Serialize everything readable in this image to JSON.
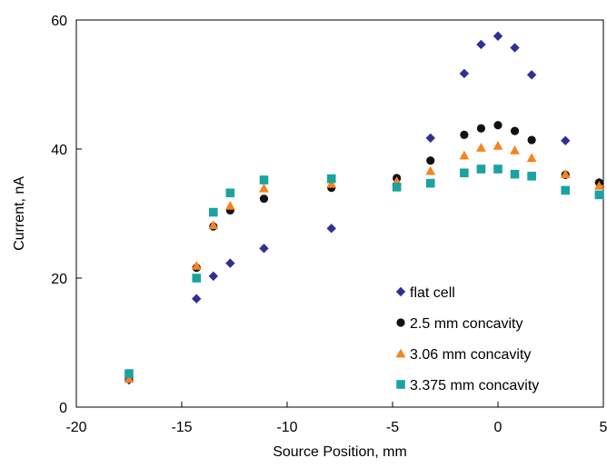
{
  "chart_data": {
    "type": "scatter",
    "xlabel": "Source Position, mm",
    "ylabel": "Current, nA",
    "xlim": [
      -20,
      5
    ],
    "ylim": [
      0,
      60
    ],
    "x_ticks": [
      -20,
      -15,
      -10,
      -5,
      0,
      5
    ],
    "y_ticks": [
      0,
      20,
      40,
      60
    ],
    "grid": false,
    "legend_position": "bottom-right",
    "series": [
      {
        "name": "flat cell",
        "marker": "diamond",
        "color": "#2E3192",
        "points": [
          [
            -17.5,
            4.2
          ],
          [
            -14.3,
            16.8
          ],
          [
            -13.5,
            20.3
          ],
          [
            -12.7,
            22.3
          ],
          [
            -11.1,
            24.6
          ],
          [
            -7.9,
            27.7
          ],
          [
            -4.8,
            34.5
          ],
          [
            -3.2,
            41.7
          ],
          [
            -1.6,
            51.7
          ],
          [
            -0.8,
            56.2
          ],
          [
            0,
            57.5
          ],
          [
            0.8,
            55.7
          ],
          [
            1.6,
            51.5
          ],
          [
            3.2,
            41.3
          ],
          [
            4.8,
            34.8
          ]
        ]
      },
      {
        "name": "2.5 mm concavity",
        "marker": "circle",
        "color": "#111111",
        "points": [
          [
            -17.5,
            4.6
          ],
          [
            -14.3,
            21.6
          ],
          [
            -13.5,
            28.0
          ],
          [
            -12.7,
            30.5
          ],
          [
            -11.1,
            32.3
          ],
          [
            -7.9,
            34.0
          ],
          [
            -4.8,
            35.5
          ],
          [
            -3.2,
            38.2
          ],
          [
            -1.6,
            42.2
          ],
          [
            -0.8,
            43.2
          ],
          [
            0,
            43.7
          ],
          [
            0.8,
            42.8
          ],
          [
            1.6,
            41.4
          ],
          [
            3.2,
            36.0
          ],
          [
            4.8,
            34.8
          ]
        ]
      },
      {
        "name": "3.06 mm concavity",
        "marker": "triangle",
        "color": "#F7821E",
        "points": [
          [
            -17.5,
            4.4
          ],
          [
            -14.3,
            21.9
          ],
          [
            -13.5,
            28.2
          ],
          [
            -12.7,
            31.2
          ],
          [
            -11.1,
            33.9
          ],
          [
            -7.9,
            34.6
          ],
          [
            -4.8,
            35.0
          ],
          [
            -3.2,
            36.6
          ],
          [
            -1.6,
            39.0
          ],
          [
            -0.8,
            40.2
          ],
          [
            0,
            40.5
          ],
          [
            0.8,
            39.8
          ],
          [
            1.6,
            38.6
          ],
          [
            3.2,
            36.1
          ],
          [
            4.8,
            34.3
          ]
        ]
      },
      {
        "name": "3.375 mm concavity",
        "marker": "square",
        "color": "#1AA3A0",
        "points": [
          [
            -17.5,
            5.2
          ],
          [
            -14.3,
            20.0
          ],
          [
            -13.5,
            30.2
          ],
          [
            -12.7,
            33.2
          ],
          [
            -11.1,
            35.2
          ],
          [
            -7.9,
            35.4
          ],
          [
            -4.8,
            34.1
          ],
          [
            -3.2,
            34.7
          ],
          [
            -1.6,
            36.3
          ],
          [
            -0.8,
            36.9
          ],
          [
            0,
            36.9
          ],
          [
            0.8,
            36.1
          ],
          [
            1.6,
            35.8
          ],
          [
            3.2,
            33.6
          ],
          [
            4.8,
            32.9
          ]
        ]
      }
    ]
  }
}
